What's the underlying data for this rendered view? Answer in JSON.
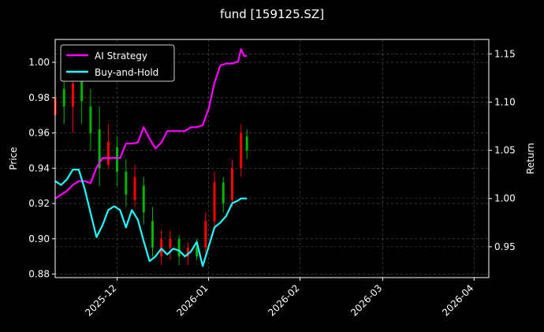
{
  "chart_data": {
    "type": "line",
    "title": "fund [159125.SZ]",
    "xlabel": "",
    "ylabel": "Price",
    "ylabel_right": "Return",
    "x_ticks": [
      "2025-12",
      "2026-01",
      "2026-02",
      "2026-03",
      "2026-04"
    ],
    "x_range": [
      "2025-11-10",
      "2026-04-06"
    ],
    "y_left_ticks": [
      0.88,
      0.9,
      0.92,
      0.94,
      0.96,
      0.98,
      1.0
    ],
    "y_left_range": [
      0.878,
      1.013
    ],
    "y_right_ticks": [
      0.95,
      1.0,
      1.05,
      1.1,
      1.15
    ],
    "y_right_range": [
      0.918,
      1.165
    ],
    "grid": true,
    "legend_position": "top-left",
    "colors": {
      "background": "#000000",
      "ai": "#ff00ff",
      "bh": "#22ffff",
      "up": "#ff0000",
      "down": "#00b400",
      "grid": "#555555"
    },
    "series": [
      {
        "name": "AI Strategy",
        "axis": "right",
        "x": [
          "2025-11-10",
          "2025-11-12",
          "2025-11-14",
          "2025-11-16",
          "2025-11-18",
          "2025-11-20",
          "2025-11-22",
          "2025-11-24",
          "2025-11-26",
          "2025-11-28",
          "2025-11-30",
          "2025-12-02",
          "2025-12-04",
          "2025-12-06",
          "2025-12-08",
          "2025-12-10",
          "2025-12-12",
          "2025-12-14",
          "2025-12-16",
          "2025-12-18",
          "2025-12-20",
          "2025-12-22",
          "2025-12-24",
          "2025-12-26",
          "2025-12-28",
          "2025-12-30",
          "2026-01-01",
          "2026-01-03",
          "2026-01-05",
          "2026-01-07",
          "2026-01-09",
          "2026-01-11",
          "2026-01-12",
          "2026-01-13",
          "2026-01-14"
        ],
        "values": [
          1.0,
          1.004,
          1.008,
          1.014,
          1.018,
          1.018,
          1.016,
          1.032,
          1.042,
          1.042,
          1.042,
          1.042,
          1.057,
          1.057,
          1.058,
          1.074,
          1.062,
          1.052,
          1.058,
          1.07,
          1.07,
          1.07,
          1.07,
          1.074,
          1.074,
          1.076,
          1.093,
          1.12,
          1.138,
          1.14,
          1.14,
          1.142,
          1.155,
          1.148,
          1.148
        ]
      },
      {
        "name": "Buy-and-Hold",
        "axis": "right",
        "x": [
          "2025-11-10",
          "2025-11-12",
          "2025-11-14",
          "2025-11-16",
          "2025-11-18",
          "2025-11-20",
          "2025-11-22",
          "2025-11-24",
          "2025-11-26",
          "2025-11-28",
          "2025-11-30",
          "2025-12-02",
          "2025-12-04",
          "2025-12-06",
          "2025-12-08",
          "2025-12-10",
          "2025-12-12",
          "2025-12-14",
          "2025-12-16",
          "2025-12-18",
          "2025-12-20",
          "2025-12-22",
          "2025-12-24",
          "2025-12-26",
          "2025-12-28",
          "2025-12-30",
          "2026-01-01",
          "2026-01-03",
          "2026-01-05",
          "2026-01-07",
          "2026-01-09",
          "2026-01-11",
          "2026-01-12",
          "2026-01-13",
          "2026-01-14"
        ],
        "values": [
          1.018,
          1.014,
          1.02,
          1.03,
          1.03,
          1.01,
          0.985,
          0.96,
          0.972,
          0.988,
          0.992,
          0.988,
          0.97,
          0.988,
          0.978,
          0.956,
          0.935,
          0.94,
          0.948,
          0.942,
          0.948,
          0.946,
          0.94,
          0.945,
          0.955,
          0.93,
          0.95,
          0.97,
          0.975,
          0.982,
          0.995,
          0.998,
          1.0,
          1.0,
          1.0
        ]
      }
    ],
    "candles": [
      {
        "x": "2025-11-10",
        "low": 0.955,
        "high": 0.985,
        "open": 0.97,
        "close": 0.98
      },
      {
        "x": "2025-11-13",
        "low": 0.965,
        "high": 0.99,
        "open": 0.985,
        "close": 0.975
      },
      {
        "x": "2025-11-16",
        "low": 0.96,
        "high": 0.992,
        "open": 0.975,
        "close": 0.988
      },
      {
        "x": "2025-11-19",
        "low": 0.965,
        "high": 0.998,
        "open": 0.99,
        "close": 0.978
      },
      {
        "x": "2025-11-22",
        "low": 0.95,
        "high": 0.985,
        "open": 0.975,
        "close": 0.96
      },
      {
        "x": "2025-11-25",
        "low": 0.93,
        "high": 0.975,
        "open": 0.962,
        "close": 0.94
      },
      {
        "x": "2025-11-28",
        "low": 0.94,
        "high": 0.965,
        "open": 0.942,
        "close": 0.955
      },
      {
        "x": "2025-12-01",
        "low": 0.93,
        "high": 0.958,
        "open": 0.952,
        "close": 0.938
      },
      {
        "x": "2025-12-04",
        "low": 0.918,
        "high": 0.945,
        "open": 0.938,
        "close": 0.925
      },
      {
        "x": "2025-12-07",
        "low": 0.918,
        "high": 0.942,
        "open": 0.922,
        "close": 0.935
      },
      {
        "x": "2025-12-10",
        "low": 0.908,
        "high": 0.935,
        "open": 0.93,
        "close": 0.915
      },
      {
        "x": "2025-12-13",
        "low": 0.89,
        "high": 0.918,
        "open": 0.91,
        "close": 0.895
      },
      {
        "x": "2025-12-16",
        "low": 0.885,
        "high": 0.905,
        "open": 0.89,
        "close": 0.9
      },
      {
        "x": "2025-12-19",
        "low": 0.888,
        "high": 0.905,
        "open": 0.895,
        "close": 0.9
      },
      {
        "x": "2025-12-22",
        "low": 0.885,
        "high": 0.902,
        "open": 0.9,
        "close": 0.89
      },
      {
        "x": "2025-12-25",
        "low": 0.885,
        "high": 0.898,
        "open": 0.89,
        "close": 0.895
      },
      {
        "x": "2025-12-28",
        "low": 0.888,
        "high": 0.9,
        "open": 0.895,
        "close": 0.89
      },
      {
        "x": "2025-12-31",
        "low": 0.892,
        "high": 0.915,
        "open": 0.895,
        "close": 0.91
      },
      {
        "x": "2026-01-03",
        "low": 0.905,
        "high": 0.938,
        "open": 0.91,
        "close": 0.932
      },
      {
        "x": "2026-01-06",
        "low": 0.915,
        "high": 0.935,
        "open": 0.932,
        "close": 0.92
      },
      {
        "x": "2026-01-09",
        "low": 0.918,
        "high": 0.945,
        "open": 0.922,
        "close": 0.94
      },
      {
        "x": "2026-01-12",
        "low": 0.935,
        "high": 0.965,
        "open": 0.94,
        "close": 0.96
      },
      {
        "x": "2026-01-14",
        "low": 0.945,
        "high": 0.962,
        "open": 0.958,
        "close": 0.95
      }
    ]
  }
}
